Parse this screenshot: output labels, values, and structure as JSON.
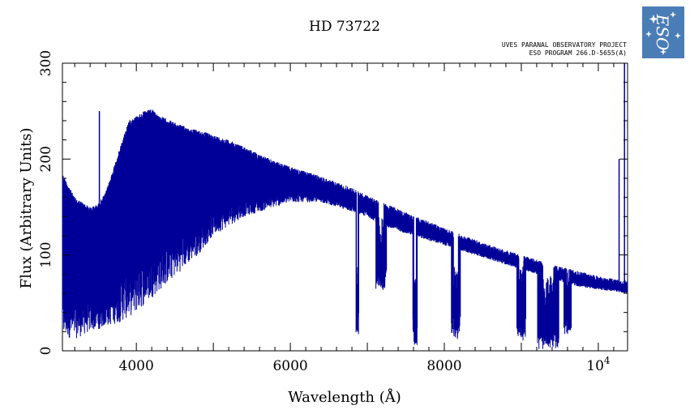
{
  "header": {
    "title": "HD 73722",
    "project_line1": "UVES PARANAL OBSERVATORY PROJECT",
    "project_line2": "ESO PROGRAM 266.D-5655(A)"
  },
  "logo": {
    "icon": "eso-logo-icon",
    "text": "ESO",
    "bg_color": "#4a7db5"
  },
  "chart_data": {
    "type": "line",
    "title": "HD 73722",
    "xlabel": "Wavelength (Å)",
    "ylabel": "Flux (Arbitrary Units)",
    "xlim": [
      3040,
      10380
    ],
    "ylim": [
      0,
      300
    ],
    "x_ticks": [
      {
        "value": 4000,
        "label": "4000"
      },
      {
        "value": 6000,
        "label": "6000"
      },
      {
        "value": 8000,
        "label": "8000"
      },
      {
        "value": 10000,
        "label": "10",
        "exponent": "4"
      }
    ],
    "y_ticks": [
      {
        "value": 0,
        "label": "0"
      },
      {
        "value": 100,
        "label": "100"
      },
      {
        "value": 200,
        "label": "200"
      },
      {
        "value": 300,
        "label": "300"
      }
    ],
    "grid": false,
    "color": "#000099",
    "series": [
      {
        "upper_envelope": [
          [
            3040,
            185
          ],
          [
            3200,
            160
          ],
          [
            3400,
            150
          ],
          [
            3500,
            153
          ],
          [
            3600,
            165
          ],
          [
            3700,
            190
          ],
          [
            3800,
            215
          ],
          [
            3900,
            240
          ],
          [
            4000,
            245
          ],
          [
            4100,
            250
          ],
          [
            4200,
            252
          ],
          [
            4300,
            245
          ],
          [
            4400,
            242
          ],
          [
            4500,
            238
          ],
          [
            4600,
            235
          ],
          [
            4700,
            232
          ],
          [
            4800,
            230
          ],
          [
            4900,
            228
          ],
          [
            5000,
            225
          ],
          [
            5200,
            220
          ],
          [
            5400,
            213
          ],
          [
            5600,
            205
          ],
          [
            5800,
            198
          ],
          [
            6000,
            192
          ],
          [
            6200,
            187
          ],
          [
            6400,
            182
          ],
          [
            6600,
            176
          ],
          [
            6800,
            170
          ],
          [
            7000,
            162
          ],
          [
            7200,
            155
          ],
          [
            7400,
            148
          ],
          [
            7600,
            141
          ],
          [
            7800,
            135
          ],
          [
            8000,
            128
          ],
          [
            8200,
            122
          ],
          [
            8400,
            116
          ],
          [
            8600,
            110
          ],
          [
            8800,
            105
          ],
          [
            9000,
            100
          ],
          [
            9200,
            95
          ],
          [
            9400,
            90
          ],
          [
            9600,
            86
          ],
          [
            9800,
            82
          ],
          [
            10000,
            78
          ],
          [
            10200,
            75
          ],
          [
            10380,
            73
          ]
        ],
        "lower_envelope": [
          [
            3040,
            15
          ],
          [
            3200,
            12
          ],
          [
            3400,
            20
          ],
          [
            3600,
            25
          ],
          [
            3800,
            30
          ],
          [
            4000,
            40
          ],
          [
            4200,
            55
          ],
          [
            4400,
            70
          ],
          [
            4600,
            85
          ],
          [
            4800,
            100
          ],
          [
            5000,
            120
          ],
          [
            5200,
            130
          ],
          [
            5400,
            140
          ],
          [
            5600,
            145
          ],
          [
            5800,
            150
          ],
          [
            6000,
            155
          ],
          [
            6200,
            155
          ],
          [
            6400,
            155
          ],
          [
            6600,
            150
          ],
          [
            6800,
            145
          ],
          [
            7000,
            140
          ],
          [
            7200,
            130
          ],
          [
            7400,
            125
          ],
          [
            7600,
            120
          ],
          [
            7800,
            115
          ],
          [
            8000,
            110
          ],
          [
            8200,
            105
          ],
          [
            8400,
            100
          ],
          [
            8600,
            95
          ],
          [
            8800,
            90
          ],
          [
            9000,
            85
          ],
          [
            9200,
            80
          ],
          [
            9400,
            75
          ],
          [
            9600,
            70
          ],
          [
            9800,
            66
          ],
          [
            10000,
            64
          ],
          [
            10200,
            62
          ],
          [
            10380,
            60
          ]
        ],
        "absorption_bands": [
          {
            "center": 6870,
            "width": 40,
            "depth": 12
          },
          {
            "center": 7180,
            "width": 140,
            "depth": 60
          },
          {
            "center": 7620,
            "width": 60,
            "depth": 0
          },
          {
            "center": 8150,
            "width": 120,
            "depth": 10
          },
          {
            "center": 9000,
            "width": 120,
            "depth": 10
          },
          {
            "center": 9350,
            "width": 280,
            "depth": 0
          },
          {
            "center": 9600,
            "width": 100,
            "depth": 15
          }
        ],
        "spikes": [
          {
            "x": 3520,
            "y": 250
          },
          {
            "x": 10270,
            "y": 200
          },
          {
            "x": 10340,
            "y": 300
          }
        ]
      }
    ]
  }
}
